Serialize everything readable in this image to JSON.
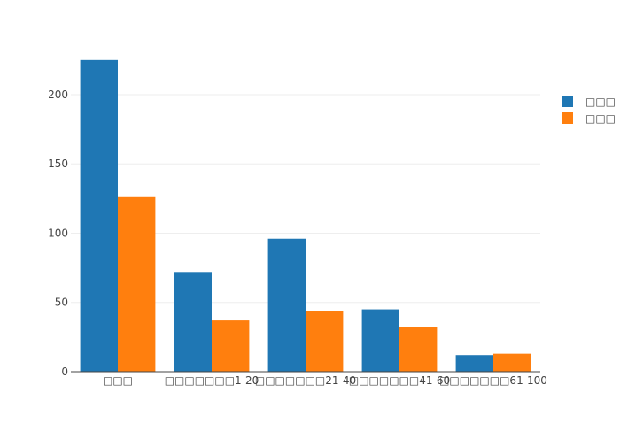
{
  "chart_data": {
    "type": "bar",
    "categories": [
      "□□□",
      "□□□□□□□1-20",
      "□□□□□□□21-40",
      "□□□□□□□41-60",
      "□□□□□□□61-100"
    ],
    "series": [
      {
        "name": "□□□",
        "color": "#1f77b4",
        "values": [
          225,
          72,
          96,
          45,
          12
        ]
      },
      {
        "name": "□□□",
        "color": "#ff7f0e",
        "values": [
          126,
          37,
          44,
          32,
          13
        ]
      }
    ],
    "ylim": [
      0,
      230
    ],
    "yticks": [
      0,
      50,
      100,
      150,
      200
    ],
    "grid": true,
    "legend": "top-right",
    "title": "",
    "xlabel": "",
    "ylabel": ""
  }
}
